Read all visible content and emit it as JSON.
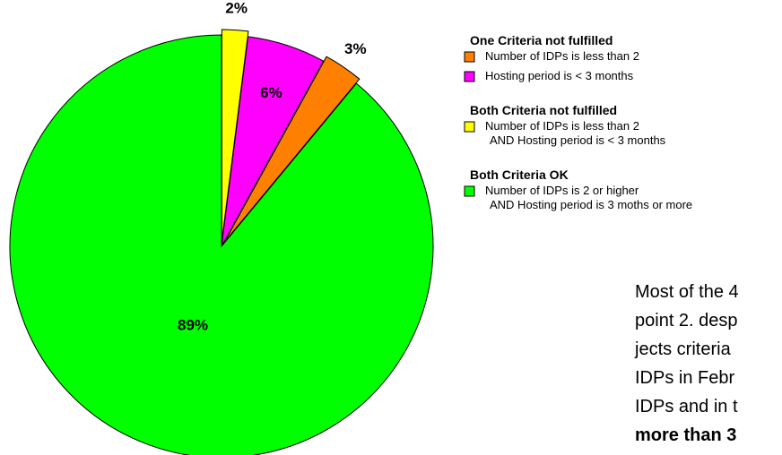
{
  "chart_data": {
    "type": "pie",
    "slices": [
      {
        "value": 2,
        "label": "2%",
        "color": "#ffff00"
      },
      {
        "value": 6,
        "label": "6%",
        "color": "#ff00ff"
      },
      {
        "value": 3,
        "label": "3%",
        "color": "#ff8000"
      },
      {
        "value": 89,
        "label": "89%",
        "color": "#00ff00"
      }
    ],
    "legend": [
      {
        "title": "One Criteria not fulfilled",
        "items": [
          {
            "lines": [
              "Number of IDPs is less than 2"
            ],
            "color": "#ff8000"
          },
          {
            "lines": [
              "Hosting period is < 3 months"
            ],
            "color": "#ff00ff"
          }
        ]
      },
      {
        "title": "Both Criteria not fulfilled",
        "items": [
          {
            "lines": [
              "Number of IDPs is less than 2",
              "AND Hosting period is < 3 months"
            ],
            "color": "#ffff00"
          }
        ]
      },
      {
        "title": "Both Criteria OK",
        "items": [
          {
            "lines": [
              "Number of IDPs is 2 or higher",
              "AND Hosting period is 3 moths or more"
            ],
            "color": "#00ff00"
          }
        ]
      }
    ]
  },
  "note": {
    "lines": [
      "Most of the 4",
      "point 2. desp",
      "jects criteria",
      "IDPs in Febr",
      "IDPs and in t"
    ],
    "bold_line": "more than 3"
  }
}
